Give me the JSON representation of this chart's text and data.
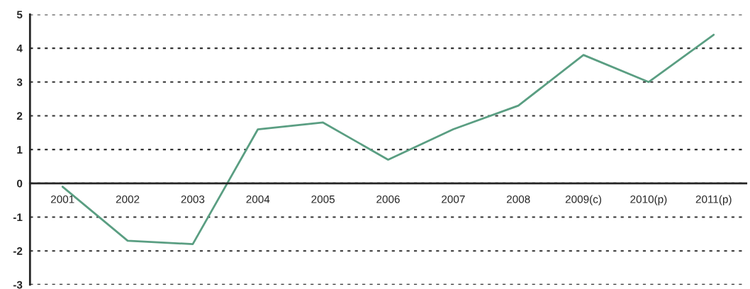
{
  "chart_data": {
    "type": "line",
    "categories": [
      "2001",
      "2002",
      "2003",
      "2004",
      "2005",
      "2006",
      "2007",
      "2008",
      "2009(c)",
      "2010(p)",
      "2011(p)"
    ],
    "series": [
      {
        "color": "#5a9e82",
        "values": [
          -0.1,
          -1.7,
          -1.8,
          1.6,
          1.8,
          0.7,
          1.6,
          2.3,
          3.8,
          3.0,
          4.4
        ]
      }
    ],
    "ylim": [
      -3,
      5
    ],
    "yticks": [
      -3,
      -2,
      -1,
      0,
      1,
      2,
      3,
      4,
      5
    ],
    "grid": "y",
    "line_style": "solid",
    "marker": "none"
  }
}
